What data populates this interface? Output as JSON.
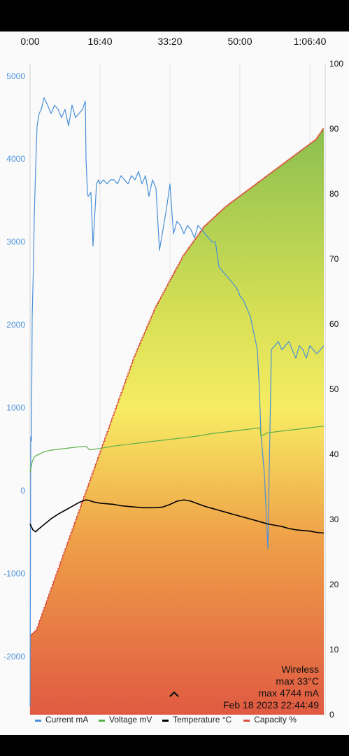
{
  "info": {
    "mode": "Wireless",
    "max_temp": "max 33°C",
    "max_current": "max 4744 mA",
    "timestamp": "Feb 18 2023 22:44:49"
  },
  "chart_data": {
    "type": "line",
    "x_ticks": [
      "0:00",
      "16:40",
      "33:20",
      "50:00",
      "1:06:40"
    ],
    "x_tick_seconds": [
      0,
      1000,
      2000,
      3000,
      4000
    ],
    "x_range_seconds": [
      0,
      4220
    ],
    "y_left_ticks": [
      "5000",
      "4000",
      "3000",
      "2000",
      "1000",
      "0",
      "-1000",
      "-2000"
    ],
    "y_left_range": [
      -2700,
      5150
    ],
    "y_right_ticks": [
      "100",
      "90",
      "80",
      "70",
      "60",
      "50",
      "40",
      "30",
      "20",
      "10",
      "0"
    ],
    "y_right_range": [
      0,
      100
    ],
    "grid": true,
    "legend_position": "bottom",
    "series": [
      {
        "name": "Current mA",
        "color": "#4a90d9",
        "axis": "left",
        "x": [
          0,
          10,
          20,
          30,
          45,
          60,
          80,
          100,
          130,
          160,
          200,
          250,
          300,
          350,
          400,
          450,
          500,
          550,
          600,
          650,
          700,
          750,
          790,
          800,
          820,
          830,
          870,
          900,
          950,
          980,
          1000,
          1050,
          1100,
          1150,
          1200,
          1250,
          1300,
          1350,
          1400,
          1450,
          1500,
          1550,
          1600,
          1650,
          1700,
          1750,
          1800,
          1850,
          1900,
          1950,
          2000,
          2050,
          2100,
          2150,
          2200,
          2250,
          2300,
          2350,
          2400,
          2450,
          2500,
          2550,
          2600,
          2650,
          2700,
          2750,
          2800,
          2850,
          2900,
          2950,
          2980,
          3000,
          3050,
          3100,
          3150,
          3200,
          3250,
          3280,
          3300,
          3350,
          3400,
          3450,
          3500,
          3550,
          3600,
          3650,
          3700,
          3750,
          3800,
          3850,
          3900,
          3950,
          4000,
          4050,
          4100,
          4150,
          4200
        ],
        "y": [
          -2600,
          650,
          600,
          2100,
          2600,
          3300,
          3900,
          4400,
          4550,
          4600,
          4740,
          4650,
          4550,
          4650,
          4600,
          4500,
          4600,
          4400,
          4650,
          4500,
          4550,
          4600,
          4700,
          4000,
          3600,
          3550,
          3600,
          2950,
          3700,
          3750,
          3700,
          3750,
          3700,
          3750,
          3750,
          3700,
          3800,
          3750,
          3700,
          3800,
          3750,
          3850,
          3700,
          3800,
          3550,
          3750,
          3650,
          2900,
          3150,
          3400,
          3700,
          3100,
          3250,
          3200,
          3100,
          3200,
          3150,
          3050,
          3200,
          3150,
          3100,
          3050,
          3000,
          3000,
          2700,
          2650,
          2600,
          2550,
          2500,
          2450,
          2400,
          2350,
          2300,
          2200,
          2100,
          1900,
          1700,
          1200,
          700,
          200,
          -700,
          1700,
          1750,
          1800,
          1700,
          1750,
          1800,
          1700,
          1600,
          1750,
          1700,
          1600,
          1750,
          1700,
          1650,
          1700,
          1750
        ]
      },
      {
        "name": "Voltage mV",
        "color": "#5aaf4a",
        "axis": "left",
        "x": [
          0,
          30,
          60,
          100,
          150,
          200,
          300,
          400,
          500,
          600,
          700,
          800,
          850,
          900,
          1000,
          1200,
          1400,
          1600,
          1800,
          2000,
          2200,
          2400,
          2600,
          2800,
          3000,
          3200,
          3290,
          3300,
          3400,
          3600,
          3800,
          4000,
          4200
        ],
        "y": [
          220,
          350,
          410,
          430,
          450,
          470,
          490,
          500,
          510,
          520,
          530,
          535,
          495,
          500,
          510,
          540,
          560,
          580,
          600,
          620,
          640,
          660,
          690,
          710,
          730,
          750,
          760,
          660,
          700,
          720,
          740,
          760,
          780
        ]
      },
      {
        "name": "Temperature °C",
        "color": "#000000",
        "axis": "right",
        "x": [
          0,
          40,
          80,
          120,
          200,
          300,
          400,
          500,
          600,
          700,
          800,
          850,
          900,
          1000,
          1100,
          1200,
          1300,
          1400,
          1500,
          1600,
          1700,
          1800,
          1900,
          2000,
          2100,
          2200,
          2300,
          2400,
          2500,
          2600,
          2700,
          2800,
          2900,
          3000,
          3100,
          3200,
          3300,
          3400,
          3500,
          3600,
          3700,
          3800,
          3900,
          4000,
          4100,
          4200
        ],
        "y": [
          29.3,
          28.4,
          28.1,
          28.5,
          29.2,
          30.1,
          30.8,
          31.4,
          32.0,
          32.6,
          33.0,
          32.9,
          32.7,
          32.5,
          32.4,
          32.3,
          32.1,
          32.0,
          31.9,
          31.8,
          31.8,
          31.8,
          31.9,
          32.3,
          32.8,
          33.0,
          32.8,
          32.4,
          32.0,
          31.7,
          31.4,
          31.1,
          30.8,
          30.5,
          30.2,
          29.9,
          29.6,
          29.3,
          29.1,
          28.9,
          28.6,
          28.4,
          28.3,
          28.2,
          28.0,
          27.9
        ]
      },
      {
        "name": "Capacity %",
        "color": "#d9503a",
        "axis": "right",
        "x": [
          0,
          100,
          200,
          300,
          400,
          500,
          600,
          700,
          800,
          900,
          1000,
          1100,
          1200,
          1300,
          1400,
          1500,
          1600,
          1700,
          1800,
          1900,
          2000,
          2100,
          2200,
          2300,
          2400,
          2500,
          2600,
          2700,
          2800,
          2900,
          3000,
          3100,
          3200,
          3300,
          3400,
          3500,
          3600,
          3700,
          3800,
          3900,
          4000,
          4100,
          4200
        ],
        "y": [
          12,
          13,
          16,
          19,
          22,
          25,
          28,
          31,
          34,
          37,
          40,
          43,
          46,
          49,
          52,
          55,
          57.5,
          60,
          62.5,
          64.5,
          66.5,
          68.5,
          70.5,
          72,
          73.5,
          75,
          76,
          77,
          78,
          78.8,
          79.6,
          80.4,
          81.2,
          82,
          82.8,
          83.6,
          84.4,
          85.2,
          86,
          86.8,
          87.6,
          88.4,
          90
        ]
      }
    ]
  }
}
